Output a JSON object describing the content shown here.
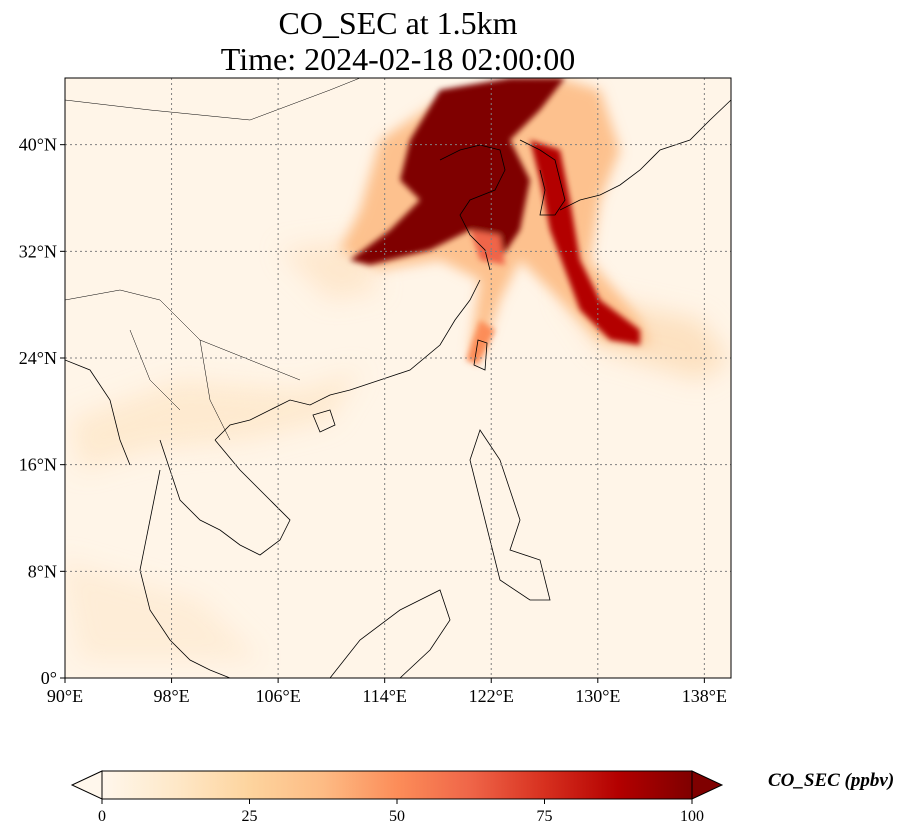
{
  "title": {
    "line1": "CO_SEC at 1.5km",
    "line2": "Time: 2024-02-18 02:00:00"
  },
  "map": {
    "variable": "CO_SEC",
    "level": "1.5km",
    "time": "2024-02-18 02:00:00",
    "projection": "PlateCarree",
    "extent": {
      "lon_min": 90,
      "lon_max": 140,
      "lat_min": 0,
      "lat_max": 45
    },
    "gridlines": "dotted gray",
    "lon_ticks": [
      {
        "value": 90,
        "label": "90°E"
      },
      {
        "value": 98,
        "label": "98°E"
      },
      {
        "value": 106,
        "label": "106°E"
      },
      {
        "value": 114,
        "label": "114°E"
      },
      {
        "value": 122,
        "label": "122°E"
      },
      {
        "value": 130,
        "label": "130°E"
      },
      {
        "value": 138,
        "label": "138°E"
      }
    ],
    "lat_ticks": [
      {
        "value": 0,
        "label": "0°"
      },
      {
        "value": 8,
        "label": "8°N"
      },
      {
        "value": 16,
        "label": "16°N"
      },
      {
        "value": 24,
        "label": "24°N"
      },
      {
        "value": 32,
        "label": "32°N"
      },
      {
        "value": 40,
        "label": "40°N"
      }
    ],
    "plume_features": [
      {
        "name": "north-china-core",
        "level": "high"
      },
      {
        "name": "yellow-sea-band",
        "level": "high"
      },
      {
        "name": "korea-japan-streak",
        "level": "high"
      },
      {
        "name": "taiwan-strait",
        "level": "medium"
      }
    ]
  },
  "colorbar": {
    "cmap": "OrRd",
    "colors": [
      "#fff7ec",
      "#fee8c8",
      "#fdd49e",
      "#fdbb84",
      "#fc8d59",
      "#ef6548",
      "#d7301f",
      "#b30000",
      "#7f0000"
    ],
    "min": 0,
    "max": 100,
    "extend": "both",
    "ticks": [
      {
        "value": 0,
        "label": "0"
      },
      {
        "value": 25,
        "label": "25"
      },
      {
        "value": 50,
        "label": "50"
      },
      {
        "value": 75,
        "label": "75"
      },
      {
        "value": 100,
        "label": "100"
      }
    ],
    "label": "CO_SEC (ppbv)"
  }
}
